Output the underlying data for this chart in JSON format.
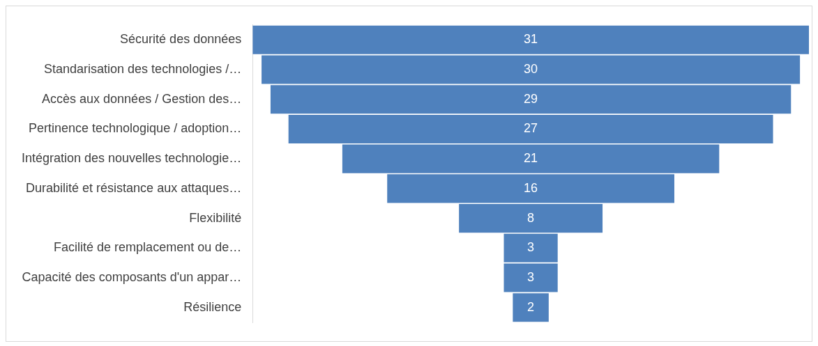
{
  "chart_data": {
    "type": "other",
    "categories": [
      "Sécurité des données",
      "Standarisation des technologies /…",
      "Accès aux données / Gestion des…",
      "Pertinence technologique / adoption…",
      "Intégration des nouvelles technologie…",
      "Durabilité et résistance aux attaques…",
      "Flexibilité",
      "Facilité de remplacement ou de…",
      "Capacité des composants d'un appar…",
      "Résilience"
    ],
    "values": [
      31,
      30,
      29,
      27,
      21,
      16,
      8,
      3,
      3,
      2
    ],
    "color": "#4f81bd",
    "data_labels": true
  }
}
